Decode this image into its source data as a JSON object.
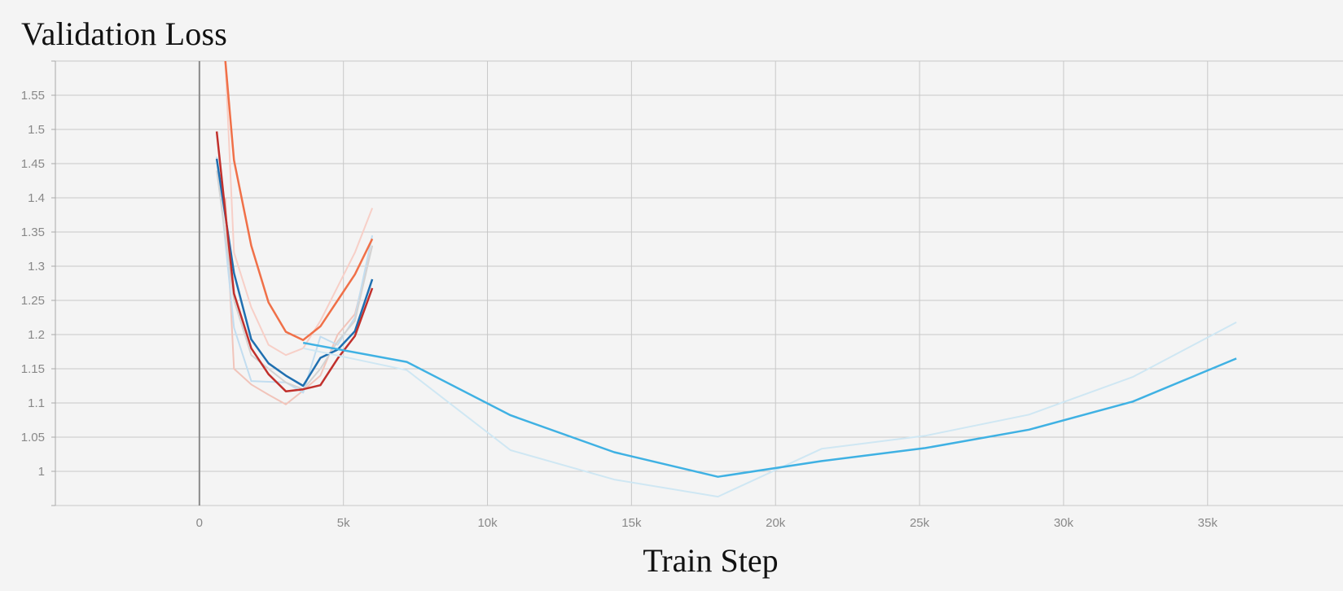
{
  "chart_data": {
    "type": "line",
    "title": "Validation Loss",
    "xlabel": "Train Step",
    "ylabel": "",
    "xlim": [
      -5000,
      39700
    ],
    "ylim": [
      0.95,
      1.6
    ],
    "xticks": [
      0,
      5000,
      10000,
      15000,
      20000,
      25000,
      30000,
      35000
    ],
    "xtick_labels": [
      "0",
      "5k",
      "10k",
      "15k",
      "20k",
      "25k",
      "30k",
      "35k"
    ],
    "yticks": [
      1.0,
      1.05,
      1.1,
      1.15,
      1.2,
      1.25,
      1.3,
      1.35,
      1.4,
      1.45,
      1.5,
      1.55
    ],
    "ytick_labels": [
      "1",
      "1.05",
      "1.1",
      "1.15",
      "1.2",
      "1.25",
      "1.3",
      "1.35",
      "1.4",
      "1.45",
      "1.5",
      "1.55"
    ],
    "grid": true,
    "legend": "none",
    "series": [
      {
        "color": "#f7cfc7",
        "width": 2,
        "x": [
          900,
          1200,
          1800,
          2400,
          3000,
          3600,
          4200,
          4800,
          5400,
          6000
        ],
        "y": [
          1.6,
          1.32,
          1.24,
          1.185,
          1.17,
          1.18,
          1.22,
          1.27,
          1.32,
          1.385
        ]
      },
      {
        "color": "#f1c4ba",
        "width": 2,
        "x": [
          900,
          1200,
          1800,
          2400,
          3000,
          3600,
          4200,
          4800,
          5400,
          6000
        ],
        "y": [
          1.4,
          1.15,
          1.127,
          1.112,
          1.098,
          1.118,
          1.14,
          1.2,
          1.23,
          1.33
        ]
      },
      {
        "color": "#c2ddf0",
        "width": 2,
        "x": [
          600,
          1200,
          1800,
          2400,
          3000,
          3600,
          4200,
          4800,
          5400,
          6000
        ],
        "y": [
          1.46,
          1.21,
          1.132,
          1.131,
          1.13,
          1.115,
          1.197,
          1.185,
          1.225,
          1.345
        ]
      },
      {
        "color": "#d3d3d3",
        "width": 2,
        "x": [
          600,
          1200,
          1800,
          2400,
          3000,
          3600,
          4200,
          4800,
          5400,
          6000
        ],
        "y": [
          1.44,
          1.25,
          1.17,
          1.15,
          1.13,
          1.12,
          1.15,
          1.19,
          1.22,
          1.33
        ]
      },
      {
        "color": "#f07048",
        "width": 2.5,
        "x": [
          900,
          1200,
          1800,
          2400,
          3000,
          3600,
          4200,
          4800,
          5400,
          6000
        ],
        "y": [
          1.6,
          1.455,
          1.33,
          1.247,
          1.204,
          1.192,
          1.212,
          1.25,
          1.288,
          1.34
        ]
      },
      {
        "color": "#1f6fb0",
        "width": 2.5,
        "x": [
          600,
          1200,
          1800,
          2400,
          3000,
          3600,
          4200,
          4800,
          5400,
          6000
        ],
        "y": [
          1.457,
          1.29,
          1.193,
          1.158,
          1.14,
          1.125,
          1.166,
          1.178,
          1.205,
          1.281
        ]
      },
      {
        "color": "#c1302c",
        "width": 2.5,
        "x": [
          600,
          1200,
          1800,
          2400,
          3000,
          3600,
          4200,
          4800,
          5400,
          6000
        ],
        "y": [
          1.497,
          1.26,
          1.18,
          1.142,
          1.117,
          1.12,
          1.126,
          1.165,
          1.198,
          1.268
        ]
      },
      {
        "color": "#cfe7f3",
        "width": 2,
        "x": [
          3600,
          7200,
          10800,
          14400,
          18000,
          21600,
          25200,
          28800,
          32400,
          36000
        ],
        "y": [
          1.18,
          1.148,
          1.031,
          0.988,
          0.963,
          1.033,
          1.052,
          1.083,
          1.138,
          1.218
        ]
      },
      {
        "color": "#3fb1e3",
        "width": 2.5,
        "x": [
          3600,
          7200,
          10800,
          14400,
          18000,
          21600,
          25200,
          28800,
          32400,
          36000
        ],
        "y": [
          1.188,
          1.16,
          1.082,
          1.028,
          0.992,
          1.015,
          1.034,
          1.061,
          1.102,
          1.165
        ]
      }
    ]
  }
}
